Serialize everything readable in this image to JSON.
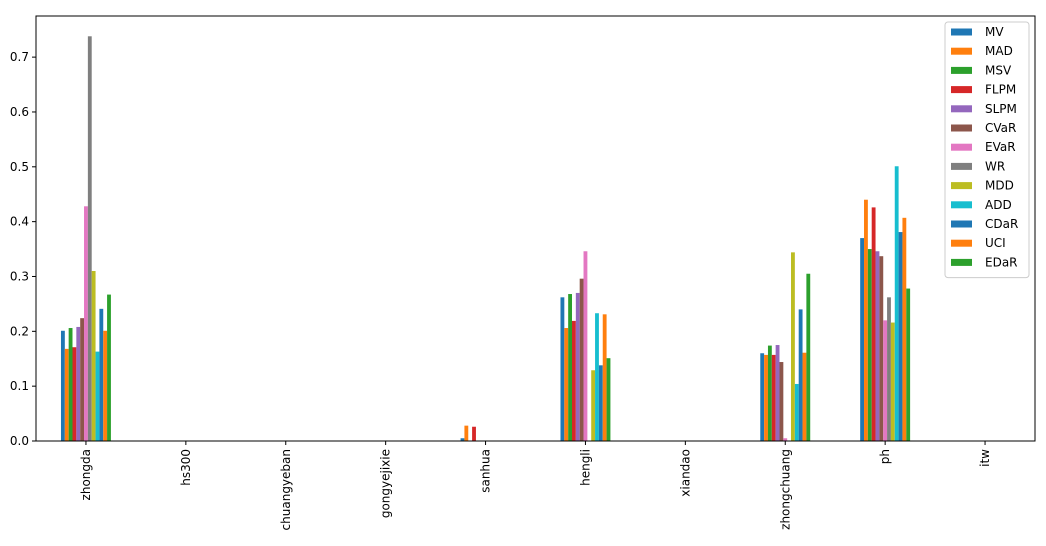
{
  "chart_data": {
    "type": "bar",
    "title": "",
    "xlabel": "",
    "ylabel": "",
    "ylim": [
      0,
      0.775
    ],
    "yticks": [
      "0.0",
      "0.1",
      "0.2",
      "0.3",
      "0.4",
      "0.5",
      "0.6",
      "0.7"
    ],
    "categories": [
      "zhongda",
      "hs300",
      "chuangyeban",
      "gongyejixie",
      "sanhua",
      "hengli",
      "xiandao",
      "zhongchuang",
      "ph",
      "itw"
    ],
    "legend_position": "upper-right",
    "grid": false,
    "series": [
      {
        "name": "MV",
        "color": "#1f77b4",
        "values": [
          0.201,
          0,
          0,
          0,
          0.005,
          0.262,
          0,
          0.16,
          0.37,
          0
        ]
      },
      {
        "name": "MAD",
        "color": "#ff7f0e",
        "values": [
          0.168,
          0,
          0,
          0,
          0.028,
          0.206,
          0,
          0.157,
          0.44,
          0
        ]
      },
      {
        "name": "MSV",
        "color": "#2ca02c",
        "values": [
          0.206,
          0,
          0,
          0,
          0.0,
          0.268,
          0,
          0.174,
          0.35,
          0
        ]
      },
      {
        "name": "FLPM",
        "color": "#d62728",
        "values": [
          0.171,
          0,
          0,
          0,
          0.026,
          0.219,
          0,
          0.157,
          0.426,
          0
        ]
      },
      {
        "name": "SLPM",
        "color": "#9467bd",
        "values": [
          0.208,
          0,
          0,
          0,
          0.0,
          0.27,
          0,
          0.175,
          0.346,
          0
        ]
      },
      {
        "name": "CVaR",
        "color": "#8c564b",
        "values": [
          0.224,
          0,
          0,
          0,
          0.0,
          0.296,
          0,
          0.144,
          0.337,
          0
        ]
      },
      {
        "name": "EVaR",
        "color": "#e377c2",
        "values": [
          0.428,
          0,
          0,
          0,
          0.0,
          0.346,
          0,
          0.005,
          0.22,
          0
        ]
      },
      {
        "name": "WR",
        "color": "#7f7f7f",
        "values": [
          0.738,
          0,
          0,
          0,
          0.0,
          0.0,
          0,
          0.0,
          0.262,
          0
        ]
      },
      {
        "name": "MDD",
        "color": "#bcbd22",
        "values": [
          0.31,
          0,
          0,
          0,
          0.0,
          0.129,
          0,
          0.344,
          0.216,
          0
        ]
      },
      {
        "name": "ADD",
        "color": "#17becf",
        "values": [
          0.163,
          0,
          0,
          0,
          0.0,
          0.233,
          0,
          0.104,
          0.501,
          0
        ]
      },
      {
        "name": "CDaR",
        "color": "#1f77b4",
        "values": [
          0.241,
          0,
          0,
          0,
          0.0,
          0.138,
          0,
          0.24,
          0.381,
          0
        ]
      },
      {
        "name": "UCI",
        "color": "#ff7f0e",
        "values": [
          0.201,
          0,
          0,
          0,
          0.0,
          0.231,
          0,
          0.161,
          0.407,
          0
        ]
      },
      {
        "name": "EDaR",
        "color": "#2ca02c",
        "values": [
          0.267,
          0,
          0,
          0,
          0.0,
          0.151,
          0,
          0.305,
          0.278,
          0
        ]
      }
    ]
  }
}
